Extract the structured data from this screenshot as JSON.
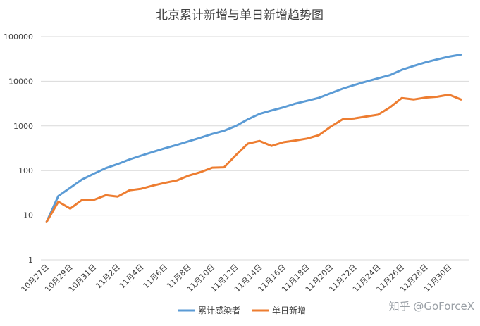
{
  "chart_data": {
    "type": "line",
    "title": "北京累计新增与单日新增趋势图",
    "y_scale": "log",
    "ylim": [
      1,
      100000
    ],
    "y_ticks": [
      "1",
      "10",
      "100",
      "1000",
      "10000",
      "100000"
    ],
    "grid": true,
    "legend_position": "bottom",
    "x": [
      "10月27日",
      "10月28日",
      "10月29日",
      "10月30日",
      "10月31日",
      "11月1日",
      "11月2日",
      "11月3日",
      "11月4日",
      "11月5日",
      "11月6日",
      "11月7日",
      "11月8日",
      "11月9日",
      "11月10日",
      "11月11日",
      "11月12日",
      "11月13日",
      "11月14日",
      "11月15日",
      "11月16日",
      "11月17日",
      "11月18日",
      "11月19日",
      "11月20日",
      "11月21日",
      "11月22日",
      "11月23日",
      "11月24日",
      "11月25日",
      "11月26日",
      "11月27日",
      "11月28日",
      "11月29日",
      "11月30日",
      "12月1日"
    ],
    "x_tick_labels": [
      "10月27日",
      "10月29日",
      "10月31日",
      "11月2日",
      "11月4日",
      "11月6日",
      "11月8日",
      "11月10日",
      "11月12日",
      "11月14日",
      "11月16日",
      "11月18日",
      "11月20日",
      "11月22日",
      "11月24日",
      "11月26日",
      "11月28日",
      "11月30日"
    ],
    "series": [
      {
        "name": "累计感染者",
        "color": "#5b9bd5",
        "values": [
          7,
          27,
          41,
          63,
          85,
          113,
          139,
          177,
          216,
          262,
          315,
          375,
          452,
          544,
          660,
          778,
          1000,
          1400,
          1860,
          2216,
          2600,
          3150,
          3650,
          4250,
          5400,
          6800,
          8250,
          9850,
          11650,
          13700,
          18000,
          22000,
          26500,
          30900,
          35700,
          39600
        ]
      },
      {
        "name": "单日新增",
        "color": "#ed7d31",
        "values": [
          7,
          20,
          14,
          22,
          22,
          28,
          26,
          36,
          39,
          46,
          53,
          60,
          77,
          92,
          116,
          118,
          222,
          400,
          460,
          356,
          430,
          470,
          520,
          620,
          960,
          1400,
          1470,
          1620,
          1780,
          2600,
          4200,
          3900,
          4300,
          4500,
          5000,
          3900
        ]
      }
    ]
  },
  "watermark": "知乎 @GoForceX"
}
